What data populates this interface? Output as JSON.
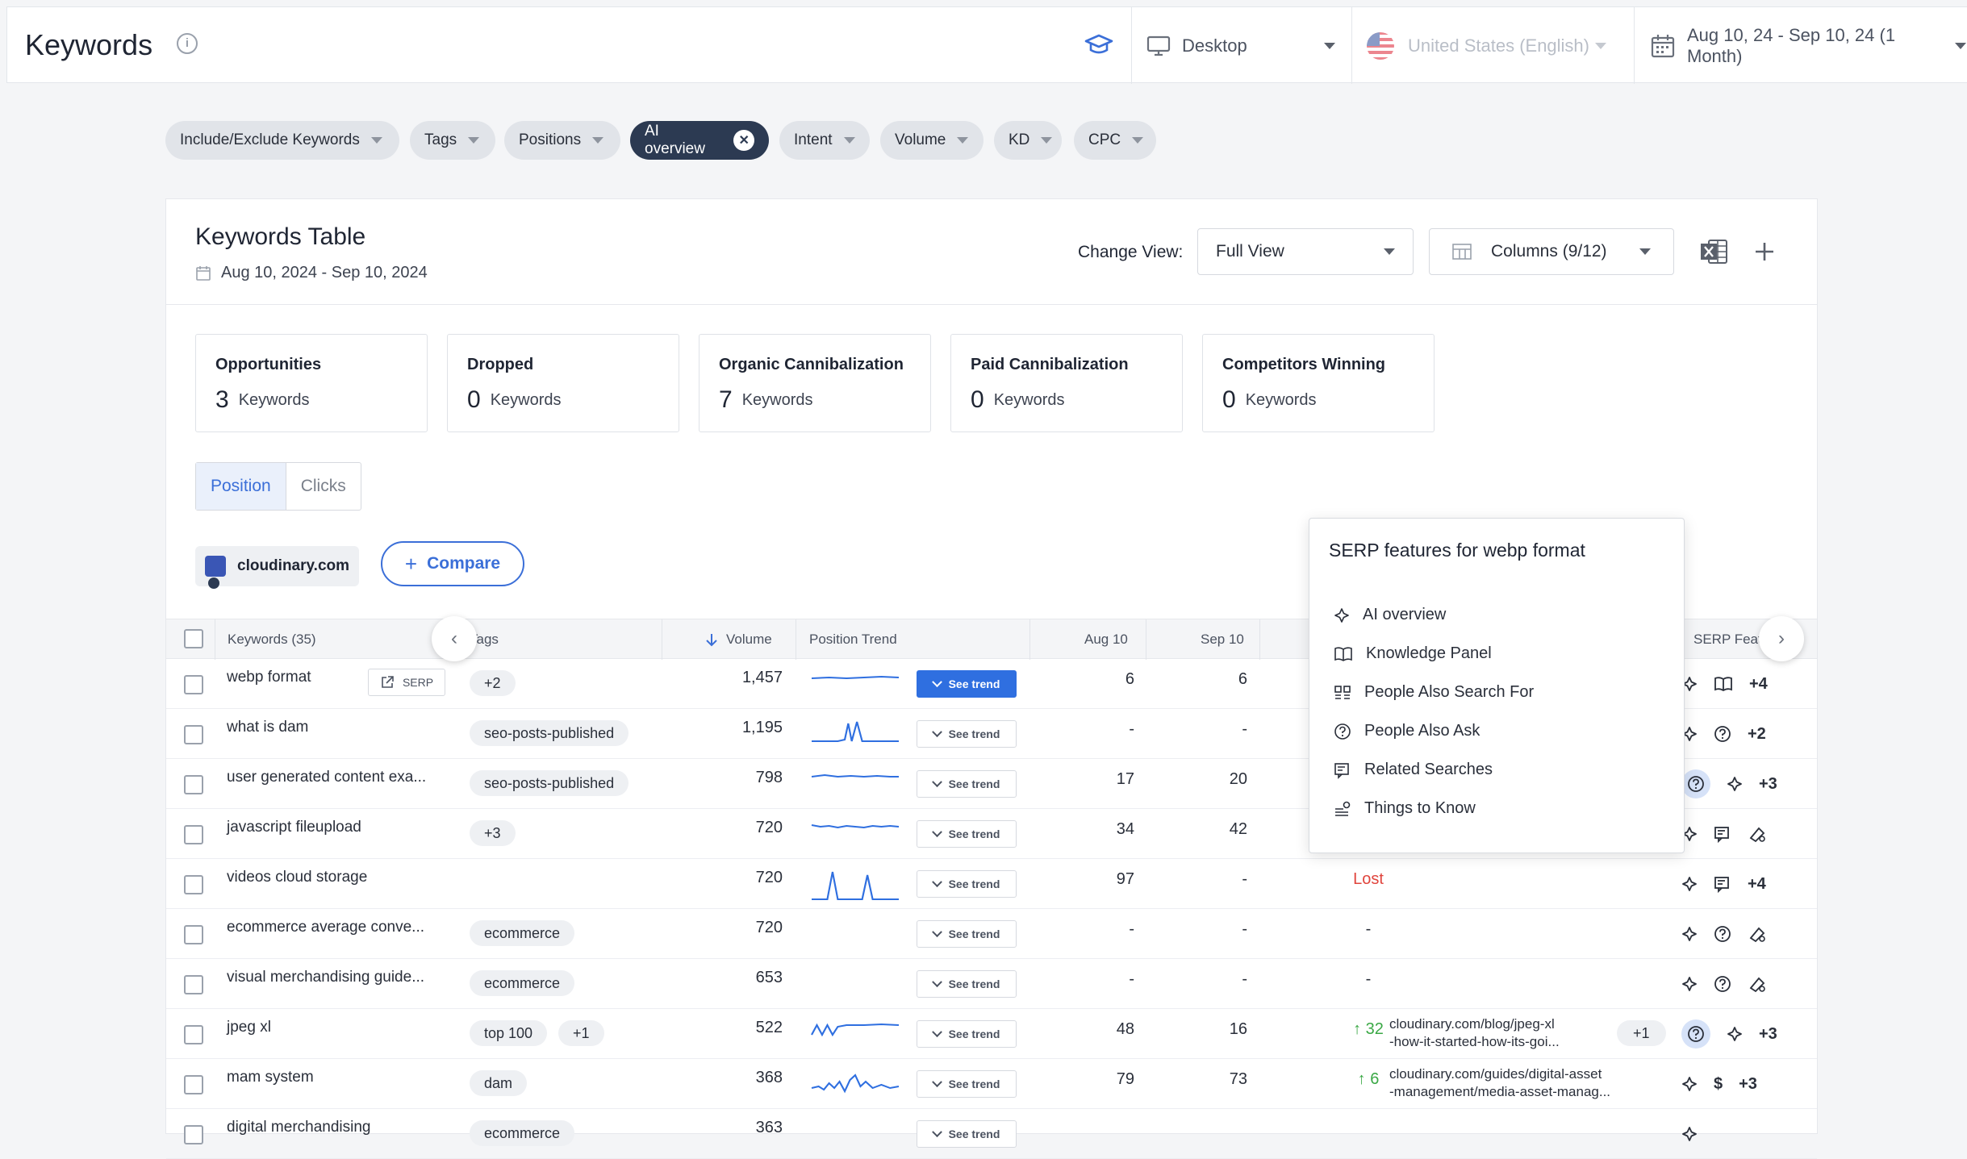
{
  "header": {
    "title": "Keywords",
    "device": "Desktop",
    "location": "United States (English)",
    "date_range": "Aug 10, 24 - Sep 10, 24 (1 Month)"
  },
  "filters": [
    {
      "label": "Include/Exclude Keywords",
      "active": false
    },
    {
      "label": "Tags",
      "active": false
    },
    {
      "label": "Positions",
      "active": false
    },
    {
      "label": "AI overview",
      "active": true
    },
    {
      "label": "Intent",
      "active": false
    },
    {
      "label": "Volume",
      "active": false
    },
    {
      "label": "KD",
      "active": false
    },
    {
      "label": "CPC",
      "active": false
    }
  ],
  "card": {
    "title": "Keywords Table",
    "date": "Aug 10, 2024 - Sep 10, 2024",
    "change_view_label": "Change View:",
    "view": "Full View",
    "columns": "Columns (9/12)"
  },
  "stats": [
    {
      "title": "Opportunities",
      "value": "3",
      "unit": "Keywords"
    },
    {
      "title": "Dropped",
      "value": "0",
      "unit": "Keywords"
    },
    {
      "title": "Organic Cannibalization",
      "value": "7",
      "unit": "Keywords"
    },
    {
      "title": "Paid Cannibalization",
      "value": "0",
      "unit": "Keywords"
    },
    {
      "title": "Competitors Winning",
      "value": "0",
      "unit": "Keywords"
    }
  ],
  "segment": {
    "position": "Position",
    "clicks": "Clicks"
  },
  "domain": "cloudinary.com",
  "compare": "Compare",
  "table": {
    "headers": {
      "keywords": "Keywords (35)",
      "tags": "Tags",
      "volume": "Volume",
      "trend": "Position Trend",
      "aug": "Aug 10",
      "sep": "Sep 10",
      "serp": "SERP Features"
    },
    "serp_button": "SERP",
    "see_trend": "See trend",
    "rows": [
      {
        "keyword": "webp format",
        "tags": [
          "+2"
        ],
        "volume": "1,457",
        "trend": "spark",
        "aug": "6",
        "sep": "6",
        "change": "",
        "url": "",
        "serp_more": "+4"
      },
      {
        "keyword": "what is dam",
        "tags": [
          "seo-posts-published"
        ],
        "volume": "1,195",
        "trend": "spark",
        "aug": "-",
        "sep": "-",
        "change": "",
        "url": "",
        "serp_more": "+2"
      },
      {
        "keyword": "user generated content exa...",
        "tags": [
          "seo-posts-published"
        ],
        "volume": "798",
        "trend": "spark",
        "aug": "17",
        "sep": "20",
        "change": "",
        "url": "",
        "serp_more": "+3"
      },
      {
        "keyword": "javascript fileupload",
        "tags": [
          "+3"
        ],
        "volume": "720",
        "trend": "spark",
        "aug": "34",
        "sep": "42",
        "change": "",
        "url": "",
        "serp_more": ""
      },
      {
        "keyword": "videos cloud storage",
        "tags": [],
        "volume": "720",
        "trend": "spark",
        "aug": "97",
        "sep": "-",
        "change": "Lost",
        "url": "",
        "serp_more": "+4"
      },
      {
        "keyword": "ecommerce average conve...",
        "tags": [
          "ecommerce"
        ],
        "volume": "720",
        "trend": "N/A",
        "aug": "-",
        "sep": "-",
        "change": "-",
        "url": "",
        "serp_more": ""
      },
      {
        "keyword": "visual merchandising guide...",
        "tags": [
          "ecommerce"
        ],
        "volume": "653",
        "trend": "N/A",
        "aug": "-",
        "sep": "-",
        "change": "-",
        "url": "",
        "serp_more": ""
      },
      {
        "keyword": "jpeg xl",
        "tags": [
          "top 100",
          "+1"
        ],
        "volume": "522",
        "trend": "spark",
        "aug": "48",
        "sep": "16",
        "change": "32",
        "url": "cloudinary.com/blog/jpeg-xl\n-how-it-started-how-its-goi...",
        "url_more": "+1",
        "serp_more": "+3"
      },
      {
        "keyword": "mam system",
        "tags": [
          "dam"
        ],
        "volume": "368",
        "trend": "spark",
        "aug": "79",
        "sep": "73",
        "change": "6",
        "url": "cloudinary.com/guides/digital-asset\n-management/media-asset-manag...",
        "serp_more": "+3"
      },
      {
        "keyword": "digital merchandising",
        "tags": [
          "ecommerce"
        ],
        "volume": "363",
        "trend": "N/A",
        "aug": "",
        "sep": "",
        "change": "",
        "url": "",
        "serp_more": ""
      }
    ]
  },
  "popup": {
    "title": "SERP features for webp format",
    "items": [
      {
        "label": "AI overview",
        "icon": "sparkle-icon"
      },
      {
        "label": "Knowledge Panel",
        "icon": "book-icon"
      },
      {
        "label": "People Also Search For",
        "icon": "grid-icon"
      },
      {
        "label": "People Also Ask",
        "icon": "question-icon"
      },
      {
        "label": "Related Searches",
        "icon": "related-icon"
      },
      {
        "label": "Things to Know",
        "icon": "things-icon"
      }
    ]
  },
  "colors": {
    "accent": "#3b6fd8",
    "dark_pill": "#2c3a52",
    "lost": "#e0443c",
    "up": "#3aa845"
  }
}
